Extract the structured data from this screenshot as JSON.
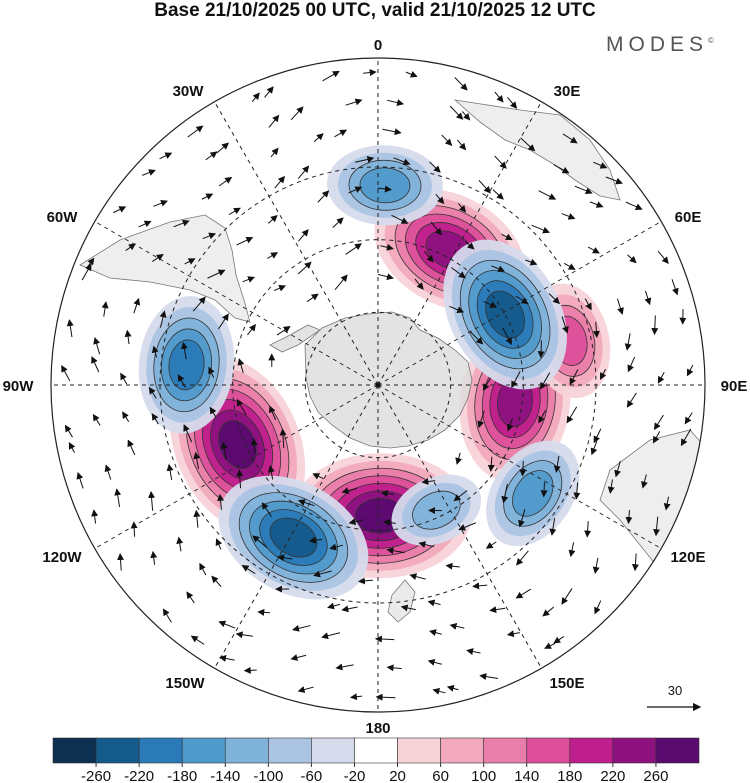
{
  "title": "Base 21/10/2025 00 UTC, valid 21/10/2025 12 UTC",
  "brand": "MODES",
  "brand_mark": "©",
  "longitude_labels": [
    "0",
    "30E",
    "60E",
    "90E",
    "120E",
    "150E",
    "180",
    "150W",
    "120W",
    "90W",
    "60W",
    "30W"
  ],
  "reference_vector": {
    "label": "30",
    "icon": "arrow-right-icon"
  },
  "colorbar": {
    "ticks": [
      "-260",
      "-220",
      "-180",
      "-140",
      "-100",
      "-60",
      "-20",
      "20",
      "60",
      "100",
      "140",
      "180",
      "220",
      "260"
    ],
    "colors": [
      "#0e3050",
      "#145a8a",
      "#2a7ab8",
      "#4f9acb",
      "#7fb2d9",
      "#abc4e4",
      "#d6dbec",
      "#ffffff",
      "#f7d3d8",
      "#f2a9bd",
      "#ea7eaa",
      "#dd4e9a",
      "#be1f8c",
      "#8d127f",
      "#5a0b6e"
    ]
  },
  "anomalies": [
    {
      "sign": "positive",
      "level": 5,
      "lon_deg": 28,
      "colat_deg": 42
    },
    {
      "sign": "positive",
      "level": 5,
      "lon_deg": 97,
      "colat_deg": 38
    },
    {
      "sign": "positive",
      "level": 3,
      "lon_deg": 77,
      "colat_deg": 54
    },
    {
      "sign": "positive",
      "level": 6,
      "lon_deg": 179,
      "colat_deg": 36
    },
    {
      "sign": "positive",
      "level": 6,
      "lon_deg": 247,
      "colat_deg": 42
    },
    {
      "sign": "negative",
      "level": 3,
      "lon_deg": 2,
      "colat_deg": 55
    },
    {
      "sign": "negative",
      "level": 5,
      "lon_deg": 61,
      "colat_deg": 40
    },
    {
      "sign": "negative",
      "level": 3,
      "lon_deg": 125,
      "colat_deg": 52
    },
    {
      "sign": "negative",
      "level": 5,
      "lon_deg": 209,
      "colat_deg": 48
    },
    {
      "sign": "negative",
      "level": 4,
      "lon_deg": 276,
      "colat_deg": 53
    },
    {
      "sign": "negative",
      "level": 2,
      "lon_deg": 155,
      "colat_deg": 38
    }
  ]
}
